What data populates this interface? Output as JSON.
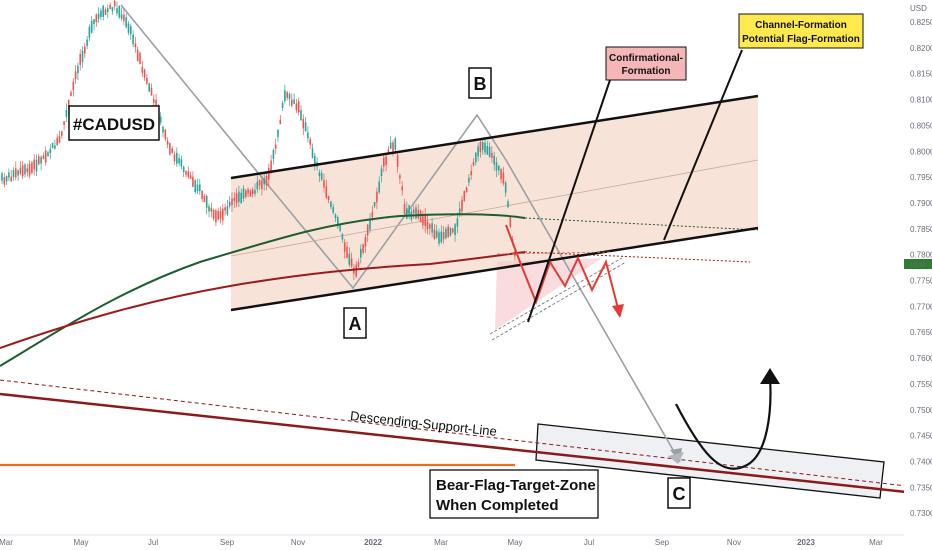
{
  "chart_data": {
    "type": "candlestick",
    "title": "#CADUSD",
    "currency": "USD",
    "price_tag": "1d 5h",
    "y_ticks": [
      "0.8250",
      "0.8200",
      "0.8150",
      "0.8100",
      "0.8050",
      "0.8000",
      "0.7950",
      "0.7900",
      "0.7850",
      "0.7800",
      "0.7750",
      "0.7700",
      "0.7650",
      "0.7600",
      "0.7550",
      "0.7500",
      "0.7450",
      "0.7400",
      "0.7350",
      "0.7300"
    ],
    "x_ticks": [
      "Mar",
      "May",
      "Jul",
      "Sep",
      "Nov",
      "2022",
      "Mar",
      "May",
      "Jul",
      "Sep",
      "Nov",
      "2023",
      "Mar"
    ],
    "annotations": {
      "point_a": "A",
      "point_b": "B",
      "point_c": "C",
      "callout_pink": [
        "Confirmational-",
        "Formation"
      ],
      "callout_yellow": [
        "Channel-Formation",
        "Potential Flag-Formation"
      ],
      "support_line": "Descending-Support-Line",
      "target_zone": [
        "Bear-Flag-Target-Zone",
        "When Completed"
      ]
    },
    "colors": {
      "up": "#26a69a",
      "down": "#ef5350",
      "ema_green": "#1f5e2e",
      "ema_red": "#9b1c1c",
      "channel_fill": "#f6d9cc",
      "callout_pink": "#f4b6b6",
      "callout_yellow": "#ffe94d",
      "support_red": "#8b1a1a",
      "orange_line": "#ef6c1a"
    },
    "grid": false
  }
}
